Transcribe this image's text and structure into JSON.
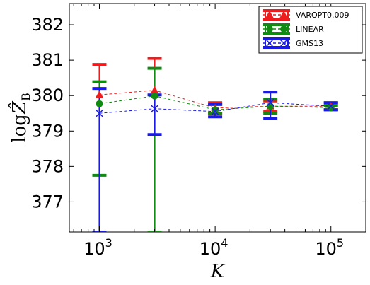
{
  "chart_data": {
    "type": "line",
    "xscale": "log",
    "x_ticks": [
      {
        "base": "10",
        "exp": "3",
        "value": 1000
      },
      {
        "base": "10",
        "exp": "4",
        "value": 10000
      },
      {
        "base": "10",
        "exp": "5",
        "value": 100000
      }
    ],
    "y_ticks": [
      377,
      378,
      379,
      380,
      381,
      382
    ],
    "xlim": [
      550,
      200000
    ],
    "ylim": [
      376.15,
      382.6
    ],
    "xlabel": "K",
    "ylabel": {
      "prefix": "log",
      "symbol": "Ẑ",
      "subscript": "B"
    },
    "legend_position": "top-right",
    "x": [
      1000,
      3000,
      10000,
      30000,
      100000
    ],
    "series": [
      {
        "name": "VAROPT0.009",
        "color": "#ee1c1c",
        "marker": "triangle",
        "values": [
          380.02,
          380.15,
          379.65,
          379.7,
          379.7
        ],
        "err_low": [
          376.15,
          376.15,
          379.5,
          379.55,
          379.6
        ],
        "err_high": [
          380.88,
          381.05,
          379.8,
          379.85,
          379.8
        ]
      },
      {
        "name": "LINEAR",
        "color": "#118a11",
        "marker": "circle",
        "values": [
          379.77,
          379.99,
          379.6,
          379.7,
          379.66
        ],
        "err_low": [
          377.75,
          376.15,
          379.5,
          379.5,
          379.6
        ],
        "err_high": [
          380.39,
          380.77,
          379.75,
          379.9,
          379.72
        ]
      },
      {
        "name": "GMS13",
        "color": "#1a1ae6",
        "marker": "x",
        "values": [
          379.5,
          379.63,
          379.55,
          379.8,
          379.7
        ],
        "err_low": [
          376.15,
          378.9,
          379.4,
          379.35,
          379.6
        ],
        "err_high": [
          380.2,
          380.02,
          379.75,
          380.1,
          379.8
        ]
      }
    ]
  }
}
